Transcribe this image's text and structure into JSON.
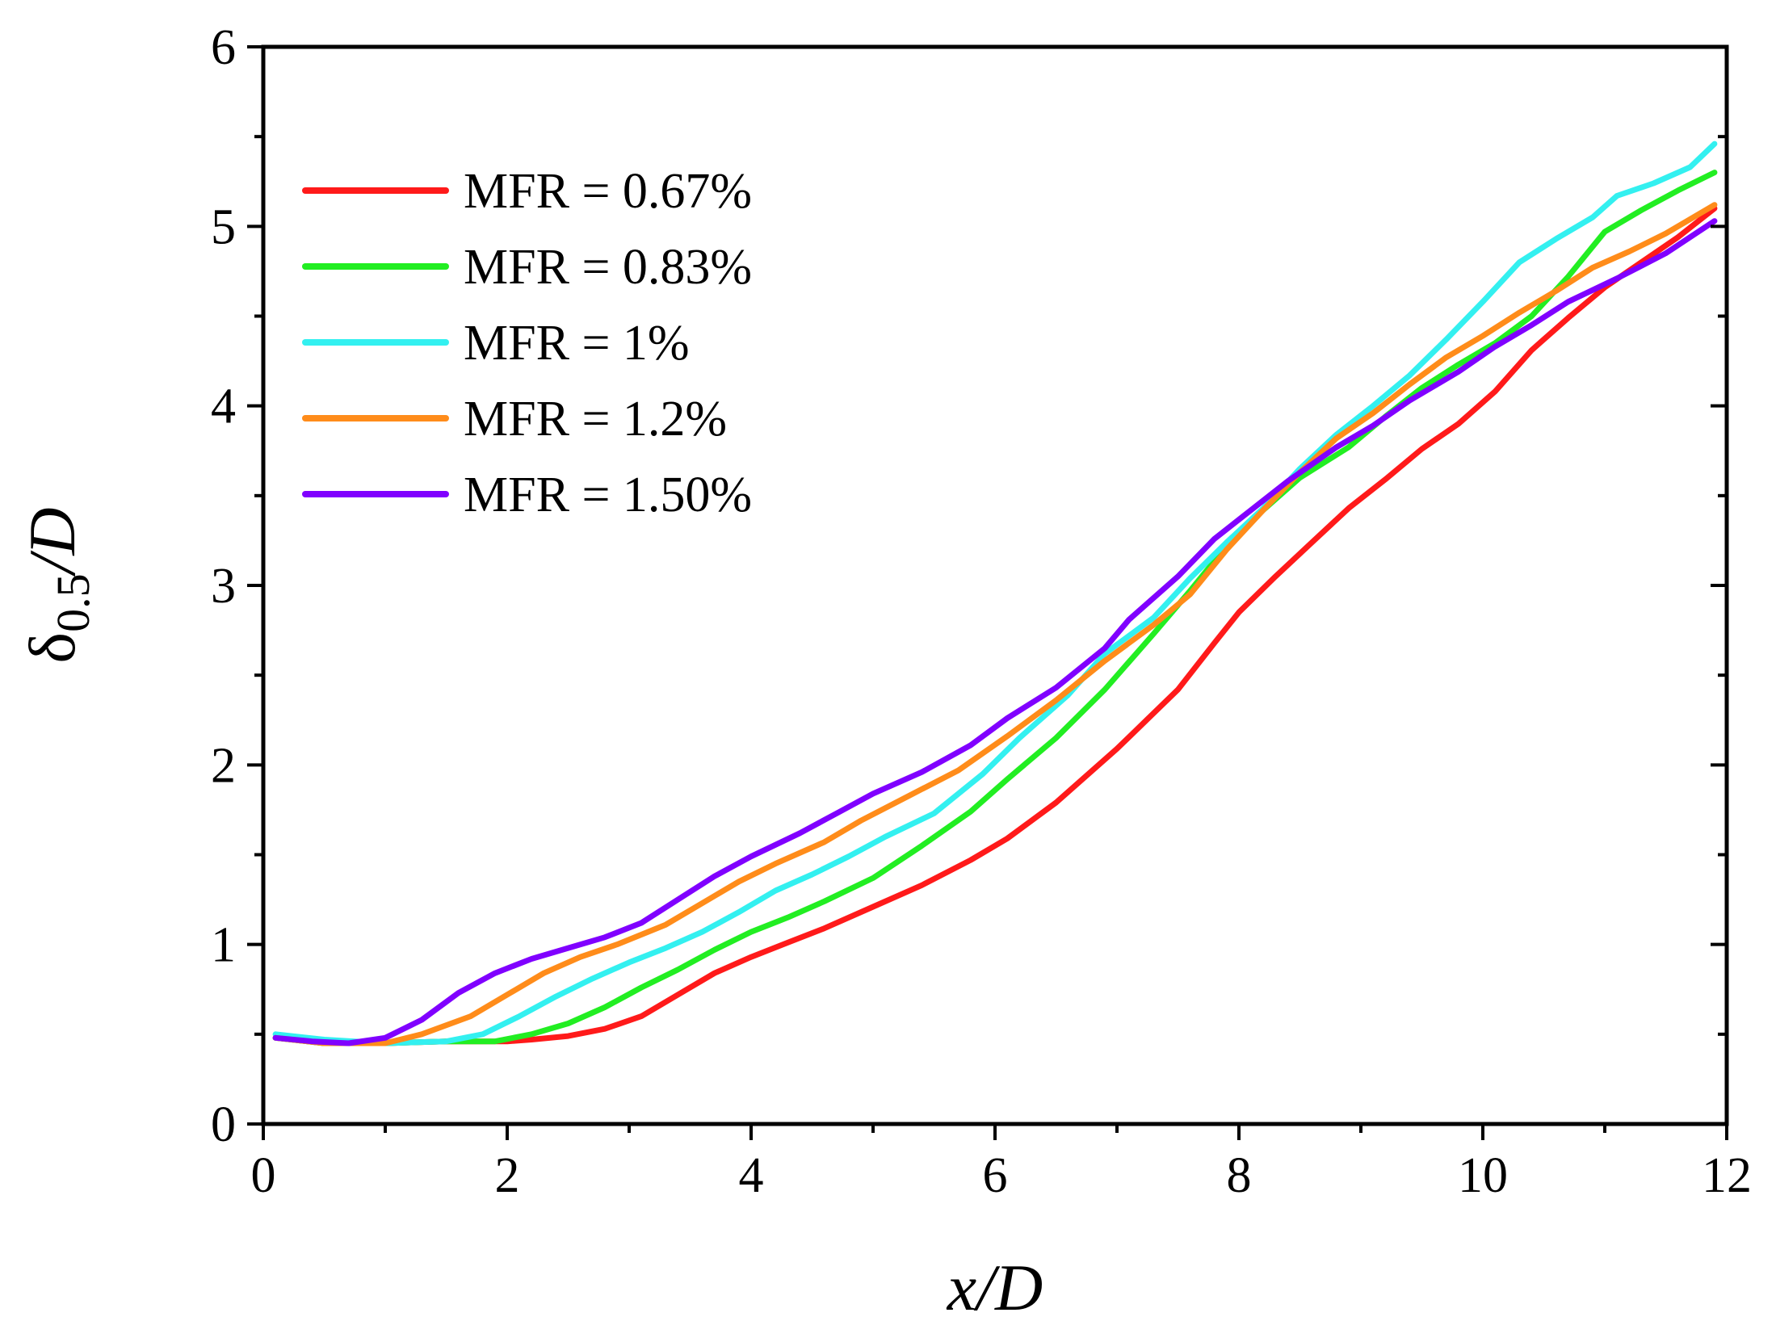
{
  "chart_data": {
    "type": "line",
    "title": "",
    "xlabel": "x/D",
    "ylabel": "δ0.5/D",
    "xlim": [
      0,
      12
    ],
    "ylim": [
      0,
      6
    ],
    "xticks": [
      0,
      2,
      4,
      6,
      8,
      10,
      12
    ],
    "yticks": [
      0,
      1,
      2,
      3,
      4,
      5,
      6
    ],
    "xtick_labels": [
      "0",
      "2",
      "4",
      "6",
      "8",
      "10",
      "12"
    ],
    "ytick_labels": [
      "0",
      "1",
      "2",
      "3",
      "4",
      "5",
      "6"
    ],
    "grid": false,
    "legend_position": "top-left",
    "series": [
      {
        "name": "MFR = 0.67%",
        "color": "#ff1a1a",
        "x": [
          0.1,
          0.5,
          1.0,
          1.5,
          2.0,
          2.2,
          2.5,
          2.8,
          3.1,
          3.4,
          3.7,
          4.0,
          4.3,
          4.6,
          5.0,
          5.4,
          5.8,
          6.1,
          6.5,
          7.0,
          7.5,
          7.8,
          8.0,
          8.3,
          8.6,
          8.9,
          9.2,
          9.5,
          9.8,
          10.1,
          10.4,
          10.7,
          11.0,
          11.3,
          11.6,
          11.9
        ],
        "values": [
          0.48,
          0.45,
          0.45,
          0.46,
          0.46,
          0.47,
          0.49,
          0.53,
          0.6,
          0.72,
          0.84,
          0.93,
          1.01,
          1.09,
          1.21,
          1.33,
          1.47,
          1.59,
          1.79,
          2.09,
          2.42,
          2.68,
          2.85,
          3.05,
          3.24,
          3.43,
          3.59,
          3.76,
          3.9,
          4.08,
          4.31,
          4.49,
          4.66,
          4.8,
          4.94,
          5.1
        ]
      },
      {
        "name": "MFR = 0.83%",
        "color": "#22ee22",
        "x": [
          0.1,
          0.5,
          1.0,
          1.5,
          1.9,
          2.2,
          2.5,
          2.8,
          3.1,
          3.4,
          3.7,
          4.0,
          4.3,
          4.6,
          5.0,
          5.4,
          5.8,
          6.1,
          6.5,
          6.9,
          7.3,
          7.6,
          7.9,
          8.2,
          8.5,
          8.9,
          9.2,
          9.5,
          9.8,
          10.1,
          10.4,
          10.7,
          11.0,
          11.3,
          11.6,
          11.9
        ],
        "values": [
          0.48,
          0.45,
          0.45,
          0.46,
          0.46,
          0.5,
          0.56,
          0.65,
          0.76,
          0.86,
          0.97,
          1.07,
          1.15,
          1.24,
          1.37,
          1.55,
          1.74,
          1.92,
          2.15,
          2.42,
          2.73,
          2.97,
          3.22,
          3.42,
          3.6,
          3.77,
          3.94,
          4.1,
          4.23,
          4.35,
          4.5,
          4.72,
          4.97,
          5.09,
          5.2,
          5.3
        ]
      },
      {
        "name": "MFR = 1%",
        "color": "#33f0f0",
        "x": [
          0.1,
          0.5,
          1.0,
          1.5,
          1.8,
          2.1,
          2.4,
          2.7,
          3.0,
          3.3,
          3.6,
          3.9,
          4.2,
          4.5,
          4.8,
          5.1,
          5.5,
          5.9,
          6.2,
          6.6,
          6.9,
          7.3,
          7.6,
          7.9,
          8.2,
          8.5,
          8.8,
          9.1,
          9.4,
          9.7,
          10.0,
          10.3,
          10.6,
          10.9,
          11.1,
          11.4,
          11.7,
          11.9
        ],
        "values": [
          0.5,
          0.47,
          0.45,
          0.46,
          0.5,
          0.6,
          0.71,
          0.81,
          0.9,
          0.98,
          1.07,
          1.18,
          1.3,
          1.39,
          1.49,
          1.6,
          1.73,
          1.95,
          2.15,
          2.39,
          2.62,
          2.82,
          3.04,
          3.24,
          3.43,
          3.65,
          3.84,
          4.0,
          4.17,
          4.37,
          4.58,
          4.8,
          4.93,
          5.05,
          5.17,
          5.24,
          5.33,
          5.46
        ]
      },
      {
        "name": "MFR = 1.2%",
        "color": "#ff8c1a",
        "x": [
          0.1,
          0.5,
          1.0,
          1.3,
          1.7,
          2.0,
          2.3,
          2.6,
          2.9,
          3.3,
          3.6,
          3.9,
          4.2,
          4.6,
          4.9,
          5.3,
          5.7,
          6.1,
          6.5,
          6.9,
          7.3,
          7.6,
          7.9,
          8.2,
          8.5,
          8.8,
          9.1,
          9.4,
          9.7,
          10.0,
          10.3,
          10.6,
          10.9,
          11.2,
          11.5,
          11.9
        ],
        "values": [
          0.48,
          0.45,
          0.45,
          0.5,
          0.6,
          0.72,
          0.84,
          0.93,
          1.0,
          1.11,
          1.23,
          1.35,
          1.45,
          1.57,
          1.69,
          1.83,
          1.97,
          2.16,
          2.36,
          2.58,
          2.78,
          2.95,
          3.2,
          3.42,
          3.63,
          3.82,
          3.96,
          4.12,
          4.27,
          4.39,
          4.52,
          4.64,
          4.77,
          4.86,
          4.96,
          5.12
        ]
      },
      {
        "name": "MFR = 1.50%",
        "color": "#8000ff",
        "x": [
          0.1,
          0.4,
          0.7,
          1.0,
          1.3,
          1.6,
          1.9,
          2.2,
          2.5,
          2.8,
          3.1,
          3.4,
          3.7,
          4.0,
          4.4,
          4.7,
          5.0,
          5.4,
          5.8,
          6.1,
          6.5,
          6.9,
          7.1,
          7.5,
          7.8,
          8.1,
          8.4,
          8.8,
          9.1,
          9.4,
          9.8,
          10.1,
          10.4,
          10.7,
          11.1,
          11.5,
          11.9
        ],
        "values": [
          0.48,
          0.46,
          0.45,
          0.48,
          0.58,
          0.73,
          0.84,
          0.92,
          0.98,
          1.04,
          1.12,
          1.25,
          1.38,
          1.49,
          1.62,
          1.73,
          1.84,
          1.96,
          2.11,
          2.26,
          2.43,
          2.65,
          2.81,
          3.05,
          3.26,
          3.42,
          3.58,
          3.77,
          3.89,
          4.03,
          4.19,
          4.33,
          4.45,
          4.58,
          4.71,
          4.85,
          5.03
        ]
      }
    ]
  }
}
